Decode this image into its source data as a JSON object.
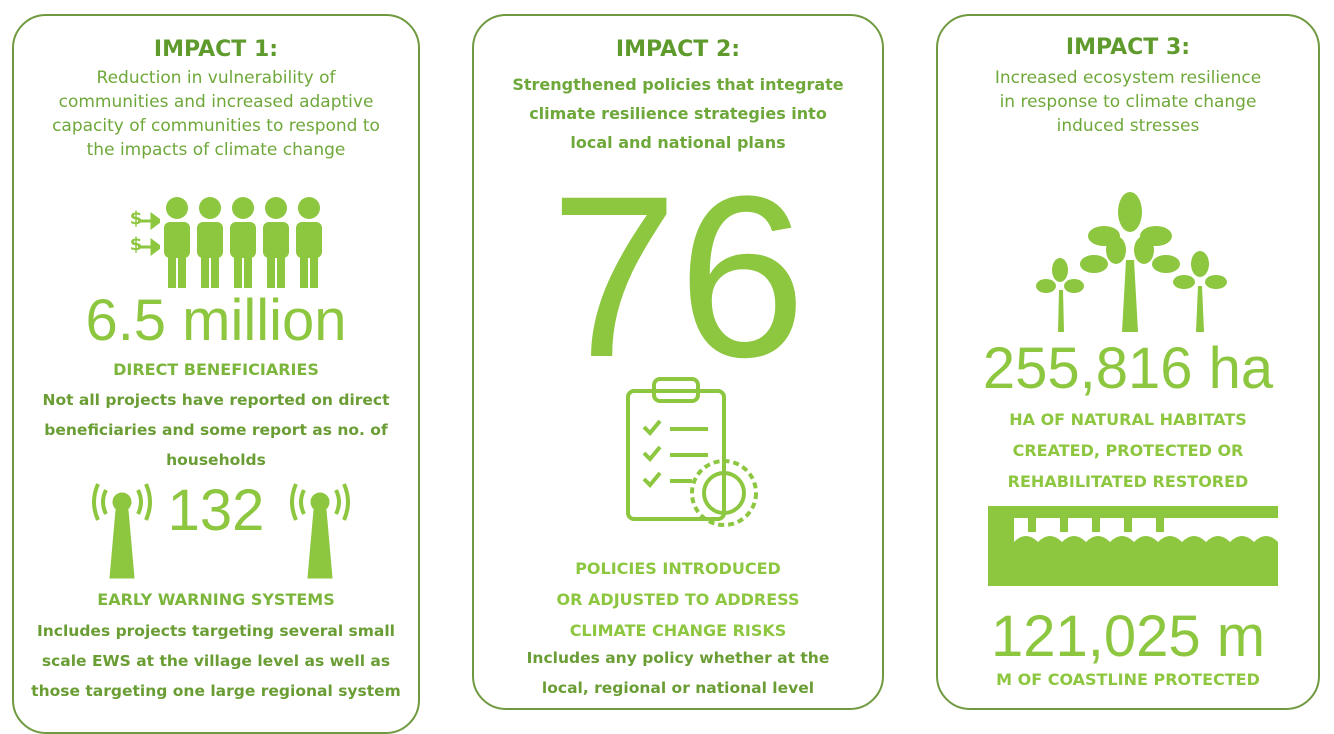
{
  "cards": [
    {
      "title": "IMPACT 1:",
      "description": [
        "Reduction in vulnerability of",
        "communities and increased adaptive",
        "capacity of communities to respond to",
        "the impacts of climate change"
      ],
      "currency_symbol": "$",
      "stats": [
        {
          "value": "6.5 million",
          "label": [
            "DIRECT BENEFICIARIES"
          ],
          "note": [
            "Not all projects have reported on direct",
            "beneficiaries and some report as no. of",
            "households"
          ]
        },
        {
          "value": "132",
          "label": [
            "EARLY WARNING SYSTEMS"
          ],
          "note": [
            "Includes projects targeting several small",
            "scale EWS at the village level as well as",
            "those targeting one large regional system"
          ]
        }
      ]
    },
    {
      "title": "IMPACT 2:",
      "description": [
        "Strengthened policies that integrate",
        "climate resilience strategies into",
        "local and national plans"
      ],
      "stats": [
        {
          "value": "76",
          "label": [
            "POLICIES INTRODUCED",
            "OR ADJUSTED TO ADDRESS",
            "CLIMATE CHANGE RISKS"
          ],
          "note": [
            "Includes any policy whether at the",
            "local, regional or national level"
          ]
        }
      ]
    },
    {
      "title": "IMPACT 3:",
      "description": [
        "Increased ecosystem resilience",
        "in response to climate change",
        "induced stresses"
      ],
      "stats": [
        {
          "value": "255,816 ha",
          "label": [
            "HA OF NATURAL HABITATS",
            "CREATED, PROTECTED OR",
            "REHABILITATED RESTORED"
          ]
        },
        {
          "value": "121,025 m",
          "label": [
            "M OF COASTLINE PROTECTED"
          ]
        }
      ]
    }
  ]
}
